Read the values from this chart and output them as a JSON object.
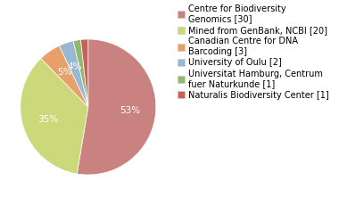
{
  "labels": [
    "Centre for Biodiversity\nGenomics [30]",
    "Mined from GenBank, NCBI [20]",
    "Canadian Centre for DNA\nBarcoding [3]",
    "University of Oulu [2]",
    "Universitat Hamburg, Centrum\nfuer Naturkunde [1]",
    "Naturalis Biodiversity Center [1]"
  ],
  "values": [
    30,
    20,
    3,
    2,
    1,
    1
  ],
  "colors": [
    "#c9827f",
    "#ccd97a",
    "#e8a06b",
    "#9ab7d3",
    "#8fba6e",
    "#c9605a"
  ],
  "fontsize_legend": 7.0,
  "fontsize_pct": 7.5,
  "background_color": "#ffffff"
}
